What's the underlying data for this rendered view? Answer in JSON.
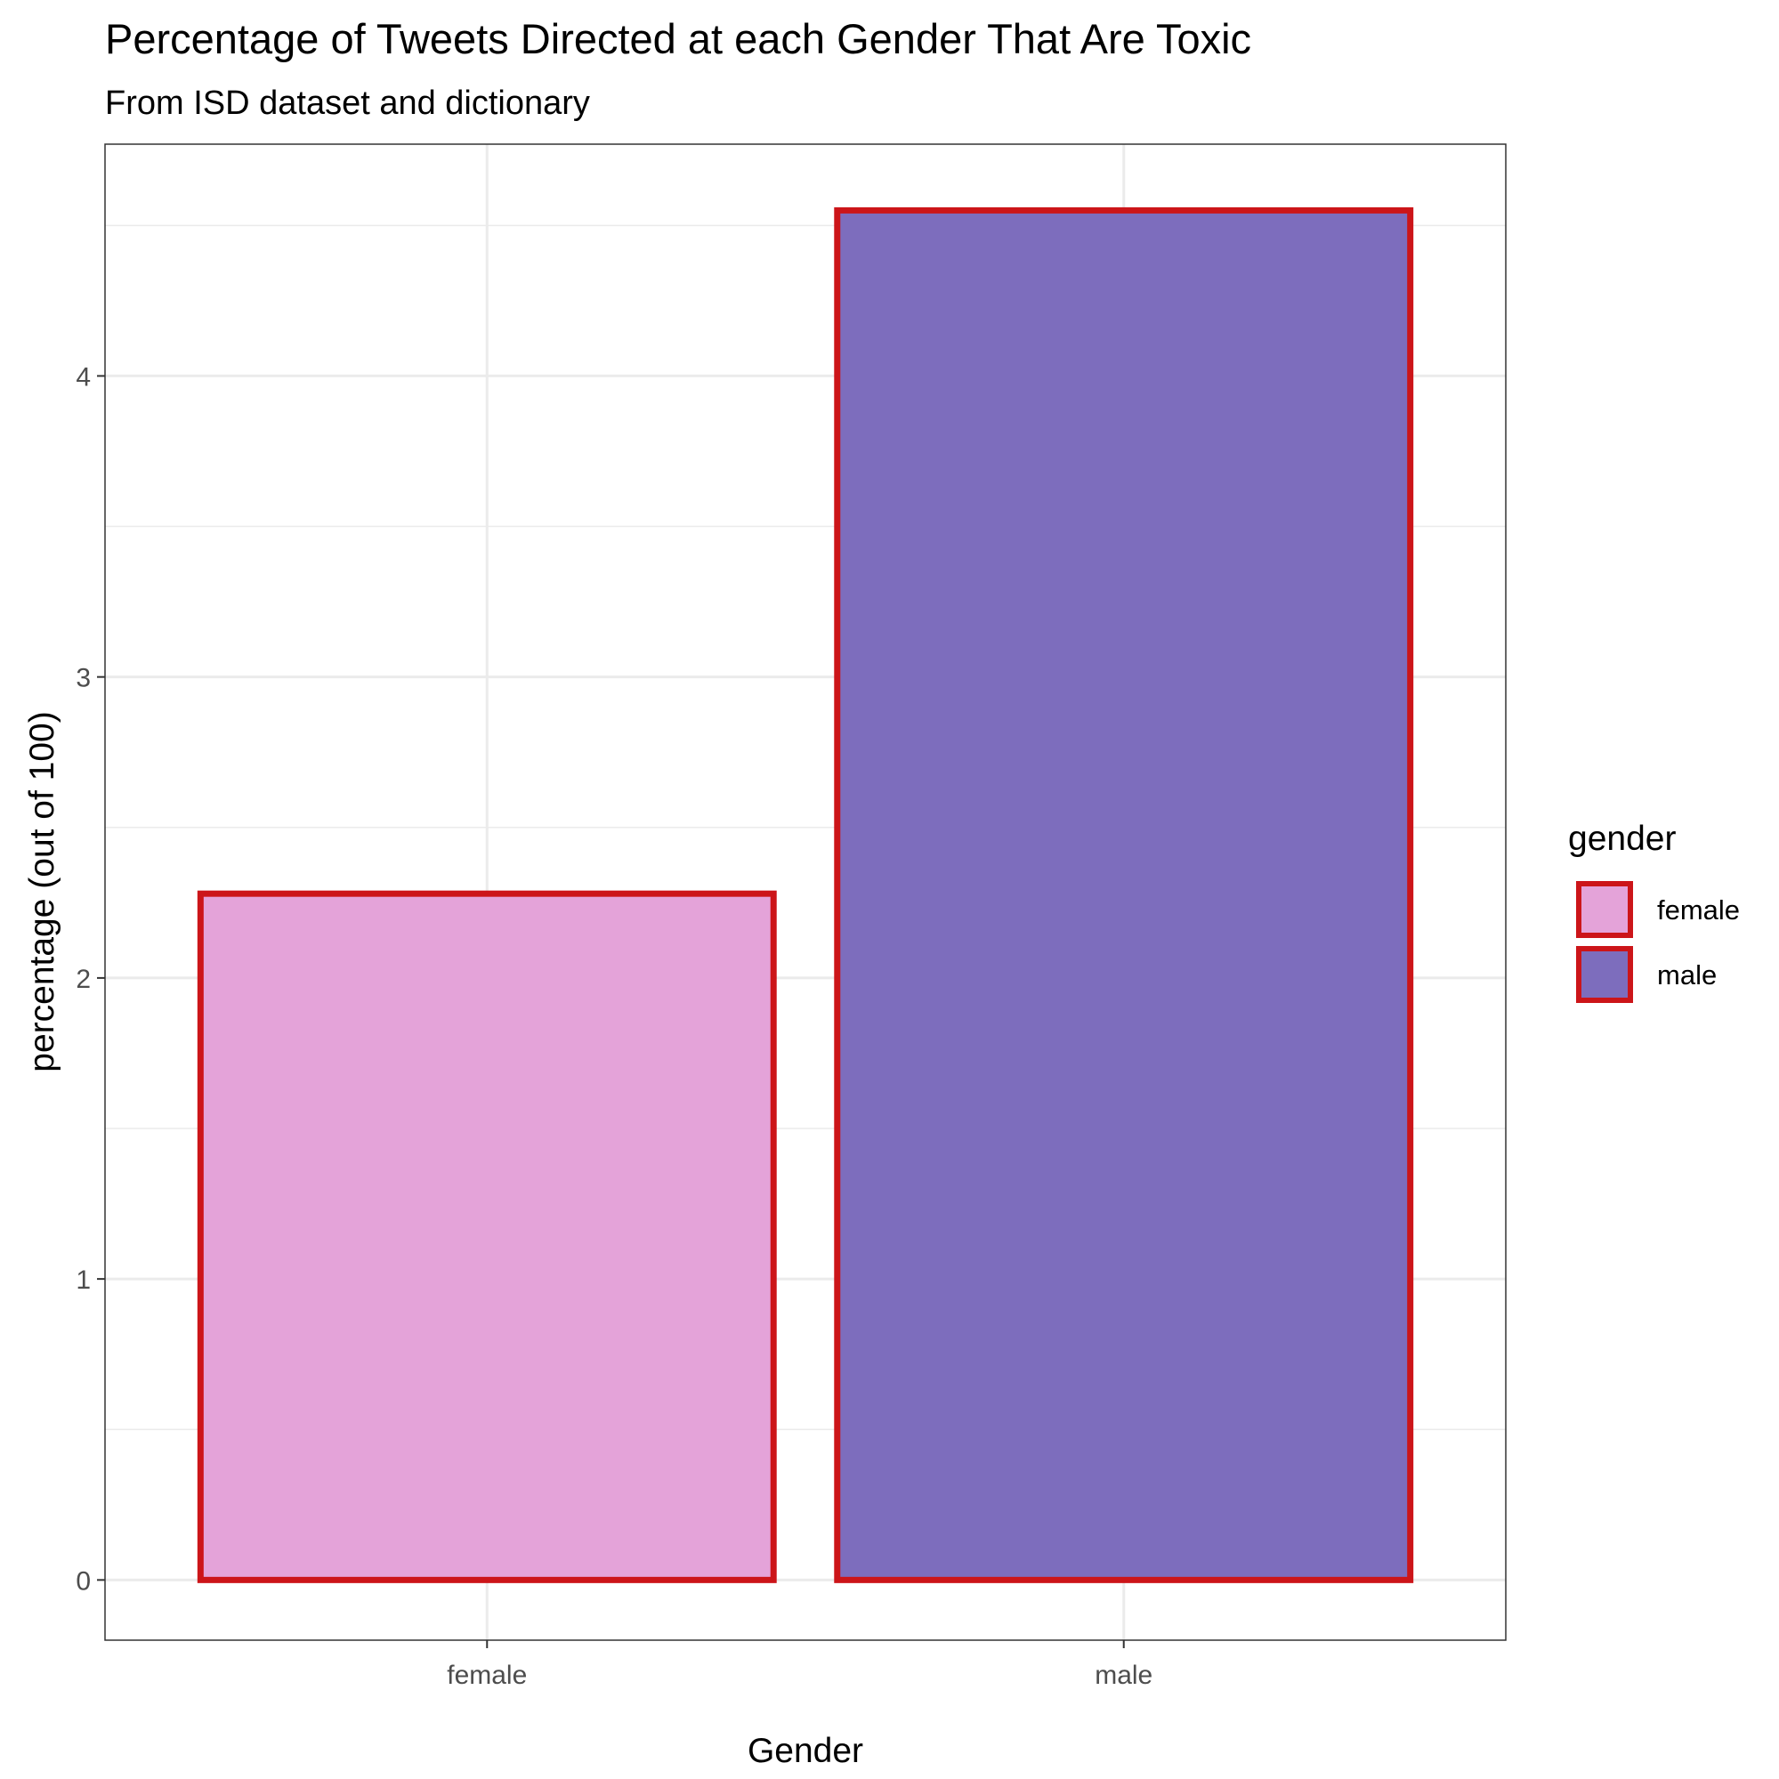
{
  "chart_data": {
    "type": "bar",
    "title": "Percentage of Tweets Directed at each Gender That Are Toxic",
    "subtitle": "From ISD dataset and dictionary",
    "xlabel": "Gender",
    "ylabel": "percentage (out of 100)",
    "categories": [
      "female",
      "male"
    ],
    "values": [
      2.28,
      4.55
    ],
    "ylim": [
      -0.2,
      4.77
    ],
    "yticks": [
      0,
      1,
      2,
      3,
      4
    ],
    "grid": true,
    "legend": {
      "title": "gender",
      "position": "right",
      "entries": [
        "female",
        "male"
      ]
    },
    "colors": {
      "female": "#e4a3d9",
      "male": "#7d6dbd",
      "bar_outline": "#cc1519",
      "panel_border": "#333333",
      "grid": "#ebebeb"
    }
  }
}
